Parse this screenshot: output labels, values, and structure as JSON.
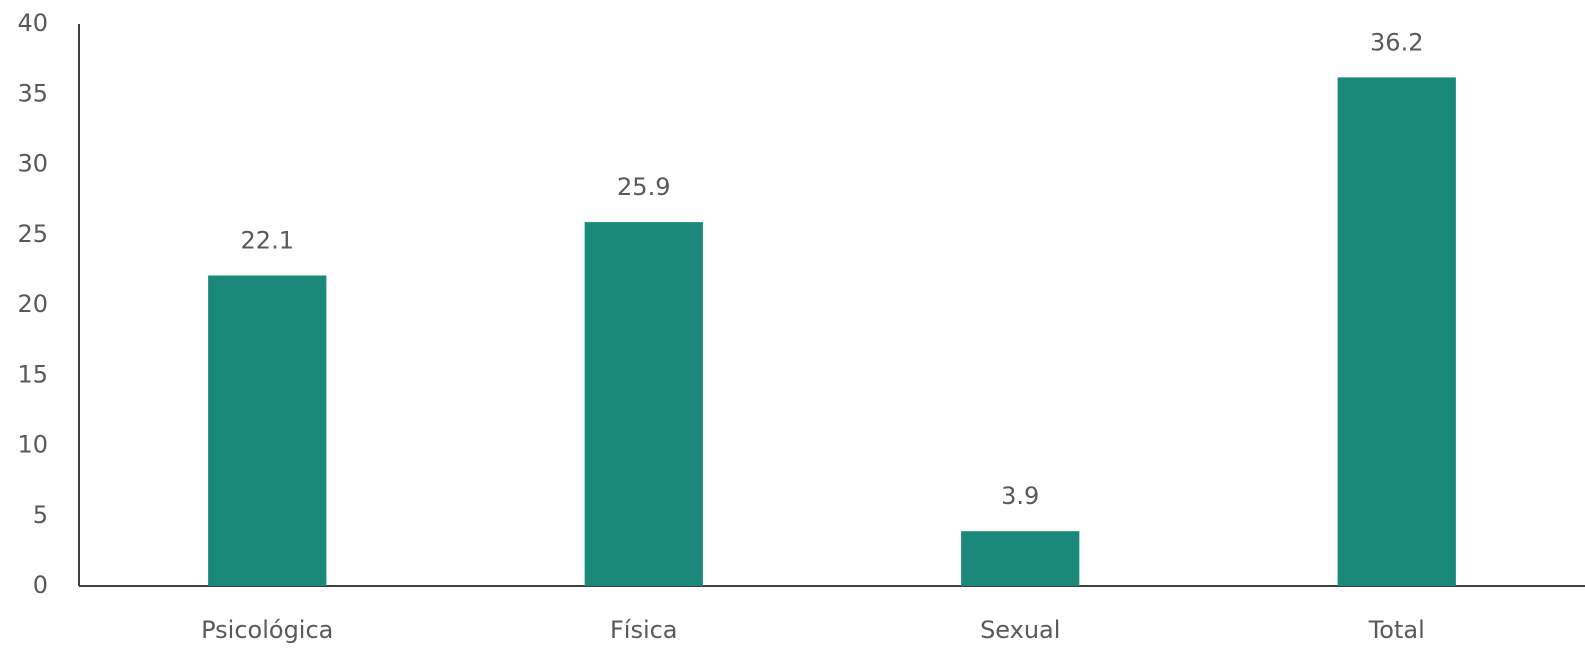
{
  "chart_data": {
    "type": "bar",
    "categories": [
      "Psicológica",
      "Física",
      "Sexual",
      "Total"
    ],
    "values": [
      22.1,
      25.9,
      3.9,
      36.2
    ],
    "color": "#1a887a",
    "ylim": [
      0,
      40
    ],
    "yticks": [
      0,
      5,
      10,
      15,
      20,
      25,
      30,
      35,
      40
    ],
    "grid": false
  }
}
